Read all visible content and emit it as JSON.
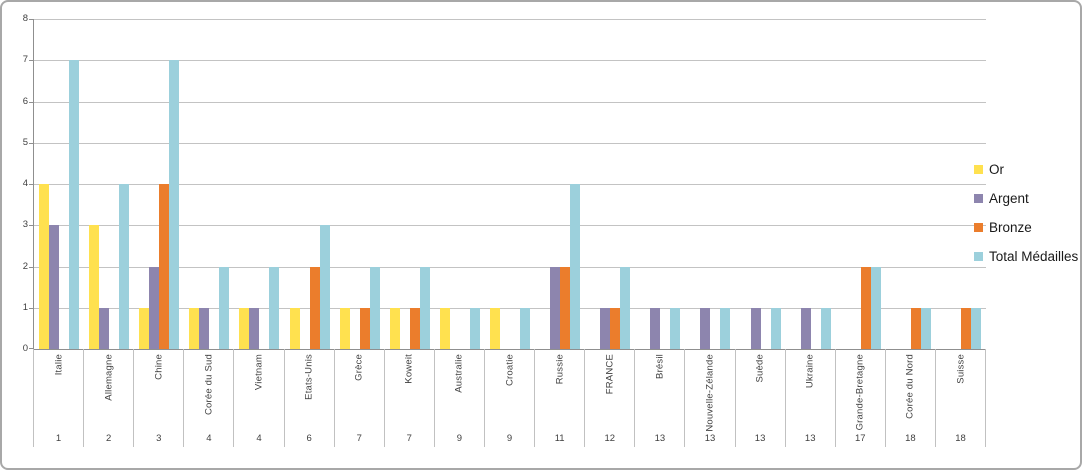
{
  "chart_data": {
    "type": "bar",
    "title": "",
    "xlabel": "",
    "ylabel": "",
    "ylim": [
      0,
      8
    ],
    "y_ticks": [
      8,
      7,
      6,
      5,
      4,
      3,
      2,
      1,
      0
    ],
    "grid": true,
    "legend_position": "right",
    "categories": [
      "Italie",
      "Allemagne",
      "Chine",
      "Corée du Sud",
      "Vietnam",
      "Etats-Unis",
      "Grèce",
      "Koweit",
      "Australie",
      "Croatie",
      "Russie",
      "FRANCE",
      "Brésil",
      "Nouvelle-Zélande",
      "Suède",
      "Ukraine",
      "Grande-Bretagne",
      "Corée du Nord",
      "Suisse"
    ],
    "ranks": [
      "1",
      "2",
      "3",
      "4",
      "4",
      "6",
      "7",
      "7",
      "9",
      "9",
      "11",
      "12",
      "13",
      "13",
      "13",
      "13",
      "17",
      "18",
      "18"
    ],
    "series": [
      {
        "name": "Or",
        "color": "#FFE14F",
        "values": [
          4,
          3,
          1,
          1,
          1,
          1,
          1,
          1,
          1,
          1,
          0,
          0,
          0,
          0,
          0,
          0,
          0,
          0,
          0
        ]
      },
      {
        "name": "Argent",
        "color": "#8D85AE",
        "values": [
          3,
          1,
          2,
          1,
          1,
          0,
          0,
          0,
          0,
          0,
          2,
          1,
          1,
          1,
          1,
          1,
          0,
          0,
          0
        ]
      },
      {
        "name": "Bronze",
        "color": "#EB7D2C",
        "values": [
          0,
          0,
          4,
          0,
          0,
          2,
          1,
          1,
          0,
          0,
          2,
          1,
          0,
          0,
          0,
          0,
          2,
          1,
          1
        ]
      },
      {
        "name": "Total Médailles",
        "color": "#9CD0DC",
        "values": [
          7,
          4,
          7,
          2,
          2,
          3,
          2,
          2,
          1,
          1,
          4,
          2,
          1,
          1,
          1,
          1,
          2,
          1,
          1
        ]
      }
    ]
  },
  "colors": {
    "gridline": "#c3c3c3",
    "axis_line": "#8f8f8f",
    "separator": "#c1c1c1",
    "text": "#3f3f3f",
    "frame_border": "#a8a8a8",
    "background": "#ffffff"
  }
}
